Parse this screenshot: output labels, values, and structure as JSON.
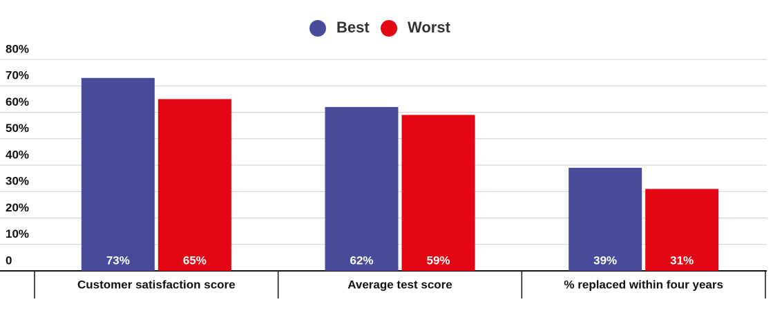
{
  "chart_data": {
    "type": "bar",
    "categories": [
      "Customer satisfaction score",
      "Average test score",
      "% replaced within four years"
    ],
    "series": [
      {
        "name": "Best",
        "color": "#474b9a",
        "values": [
          73,
          62,
          39
        ],
        "value_labels": [
          "73%",
          "62%",
          "39%"
        ]
      },
      {
        "name": "Worst",
        "color": "#e30613",
        "values": [
          65,
          59,
          31
        ],
        "value_labels": [
          "65%",
          "59%",
          "31%"
        ]
      }
    ],
    "ylim": [
      0,
      80
    ],
    "yticks": [
      0,
      {
        "value": 10,
        "label": "10%"
      },
      {
        "value": 20,
        "label": "20%"
      },
      {
        "value": 30,
        "label": "30%"
      },
      {
        "value": 40,
        "label": "40%"
      },
      {
        "value": 50,
        "label": "50%"
      },
      {
        "value": 60,
        "label": "60%"
      },
      {
        "value": 70,
        "label": "70%"
      },
      {
        "value": 80,
        "label": "80%"
      }
    ],
    "grid": true,
    "legend": "top"
  }
}
